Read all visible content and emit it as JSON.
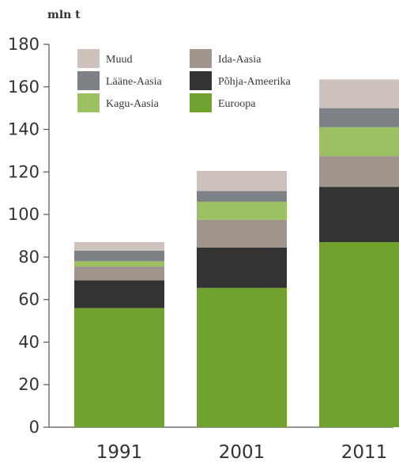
{
  "chart_data": {
    "type": "bar",
    "stacked": true,
    "unit_label": "mln t",
    "categories": [
      "1991",
      "2001",
      "2011"
    ],
    "ylim": [
      0,
      180
    ],
    "yticks": [
      0,
      20,
      40,
      60,
      80,
      100,
      120,
      140,
      160,
      180
    ],
    "grid": false,
    "legend_position": "top-left",
    "series": [
      {
        "name": "Euroopa",
        "color": "#72a22e",
        "values": [
          56,
          65.5,
          87
        ]
      },
      {
        "name": "Põhja-Ameerika",
        "color": "#333333",
        "values": [
          13,
          19,
          26
        ]
      },
      {
        "name": "Ida-Aasia",
        "color": "#a0948c",
        "values": [
          6.5,
          13,
          14.5
        ]
      },
      {
        "name": "Kagu-Aasia",
        "color": "#9bc163",
        "values": [
          2.5,
          8.5,
          13.5
        ]
      },
      {
        "name": "Lääne-Aasia",
        "color": "#7e8185",
        "values": [
          5,
          5,
          9
        ]
      },
      {
        "name": "Muud",
        "color": "#cdc3bc",
        "values": [
          4,
          9.5,
          13.5
        ]
      }
    ],
    "legend_order": [
      "Muud",
      "Ida-Aasia",
      "Lääne-Aasia",
      "Põhja-Ameerika",
      "Kagu-Aasia",
      "Euroopa"
    ]
  }
}
